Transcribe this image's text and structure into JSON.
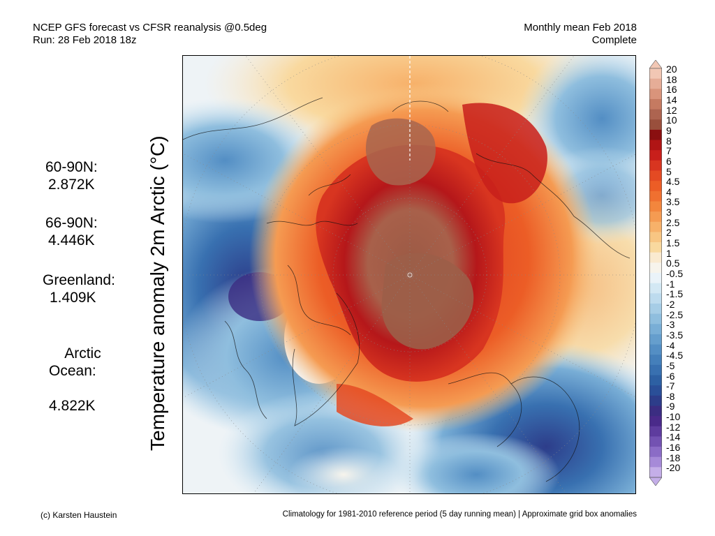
{
  "header": {
    "title_line1": "NCEP GFS forecast vs CFSR reanalysis @0.5deg",
    "title_line2": "Run: 28 Feb 2018 18z",
    "period_line1": "Monthly mean Feb 2018",
    "period_line2": "Complete"
  },
  "axis": {
    "ylabel": "Temperature anomaly 2m Arctic (°C)"
  },
  "stats": [
    {
      "label": "60-90N:",
      "value": "2.872K"
    },
    {
      "label": "66-90N:",
      "value": "4.446K"
    },
    {
      "label": "Greenland:",
      "value": "1.409K"
    },
    {
      "label": "Arctic\nOcean:",
      "value": "4.822K"
    }
  ],
  "colorbar": {
    "labels": [
      "20",
      "18",
      "16",
      "14",
      "12",
      "10",
      "9",
      "8",
      "7",
      "6",
      "5",
      "4.5",
      "4",
      "3.5",
      "3",
      "2.5",
      "2",
      "1.5",
      "1",
      "0.5",
      "-0.5",
      "-1",
      "-1.5",
      "-2",
      "-2.5",
      "-3",
      "-3.5",
      "-4",
      "-4.5",
      "-5",
      "-6",
      "-7",
      "-8",
      "-9",
      "-10",
      "-12",
      "-14",
      "-16",
      "-18",
      "-20"
    ],
    "colors": [
      "#f2c7b4",
      "#e6ad97",
      "#d9947b",
      "#c57a61",
      "#ad6450",
      "#994f3c",
      "#8a0f10",
      "#b01515",
      "#c81f1b",
      "#d83520",
      "#e44a23",
      "#ec5d26",
      "#f07030",
      "#f3863d",
      "#f59b52",
      "#f7b16a",
      "#f8c683",
      "#f9d99f",
      "#faead0",
      "#f7f4ec",
      "#eaf3f9",
      "#d3e8f4",
      "#bddbee",
      "#a6cde6",
      "#8fbede",
      "#79aed6",
      "#659ecd",
      "#538ec4",
      "#447fba",
      "#3870b0",
      "#2d60a3",
      "#2a4f98",
      "#2d3d8a",
      "#3b2d82",
      "#4a2a8a",
      "#5e3c9e",
      "#7352b2",
      "#8b6cc6",
      "#a68ad8",
      "#c4aee8"
    ]
  },
  "footer": {
    "credit": "(c) Karsten Haustein",
    "note": "Climatology for 1981-2010 reference period (5 day running mean) | Approximate grid box anomalies"
  }
}
